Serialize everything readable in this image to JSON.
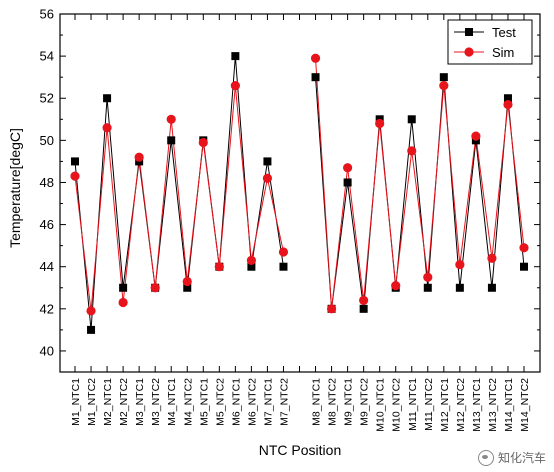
{
  "chart_data": {
    "type": "line",
    "title": "",
    "xlabel": "NTC Position",
    "ylabel": "Temperature[degC]",
    "ylim": [
      39,
      56
    ],
    "yticks": [
      40,
      42,
      44,
      46,
      48,
      50,
      52,
      54,
      56
    ],
    "grid": false,
    "legend_position": "top-right",
    "categories": [
      "M1_NTC1",
      "M1_NTC2",
      "M2_NTC1",
      "M2_NTC2",
      "M3_NTC1",
      "M3_NTC2",
      "M4_NTC1",
      "M4_NTC2",
      "M5_NTC1",
      "M5_NTC2",
      "M6_NTC1",
      "M6_NTC2",
      "M7_NTC1",
      "M7_NTC2",
      "",
      "M8_NTC1",
      "M8_NTC2",
      "M9_NTC1",
      "M9_NTC2",
      "M10_NTC1",
      "M10_NTC2",
      "M11_NTC1",
      "M11_NTC2",
      "M12_NTC1",
      "M12_NTC2",
      "M13_NTC1",
      "M13_NTC2",
      "M14_NTC1",
      "M14_NTC2"
    ],
    "series": [
      {
        "name": "Test",
        "color": "#000000",
        "marker": "square",
        "values": [
          49,
          41,
          52,
          43,
          49,
          43,
          50,
          43,
          50,
          44,
          54,
          44,
          49,
          44,
          null,
          53,
          42,
          48,
          42,
          51,
          43,
          51,
          43,
          53,
          43,
          50,
          43,
          52,
          44
        ]
      },
      {
        "name": "Sim",
        "color": "#e8141c",
        "marker": "circle",
        "values": [
          48.3,
          41.9,
          50.6,
          42.3,
          49.2,
          43.0,
          51.0,
          43.3,
          49.9,
          44.0,
          52.6,
          44.3,
          48.2,
          44.7,
          null,
          53.9,
          42.0,
          48.7,
          42.4,
          50.8,
          43.1,
          49.5,
          43.5,
          52.6,
          44.1,
          50.2,
          44.4,
          51.7,
          44.9
        ]
      }
    ]
  },
  "watermark": {
    "text": "知化汽车",
    "icon": "wechat-icon"
  }
}
